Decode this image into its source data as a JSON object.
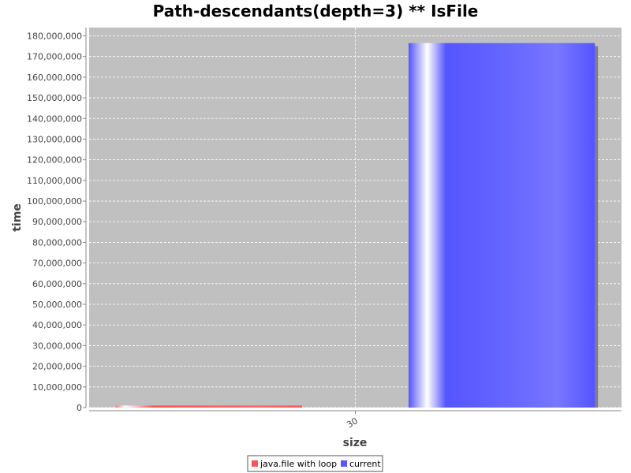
{
  "chart_data": {
    "type": "bar",
    "title": "Path-descendants(depth=3) ** IsFile",
    "xlabel": "size",
    "ylabel": "time",
    "categories": [
      "30"
    ],
    "series": [
      {
        "name": "java.file with loop",
        "values": [
          1000000
        ],
        "color": "#ff5555"
      },
      {
        "name": "current",
        "values": [
          176500000
        ],
        "color": "#5555ff"
      }
    ],
    "ylim": [
      0,
      184000000
    ],
    "yticks": [
      0,
      10000000,
      20000000,
      30000000,
      40000000,
      50000000,
      60000000,
      70000000,
      80000000,
      90000000,
      100000000,
      110000000,
      120000000,
      130000000,
      140000000,
      150000000,
      160000000,
      170000000,
      180000000
    ],
    "grid": true,
    "legend_position": "bottom",
    "plot_background": "#c0c0c0"
  }
}
